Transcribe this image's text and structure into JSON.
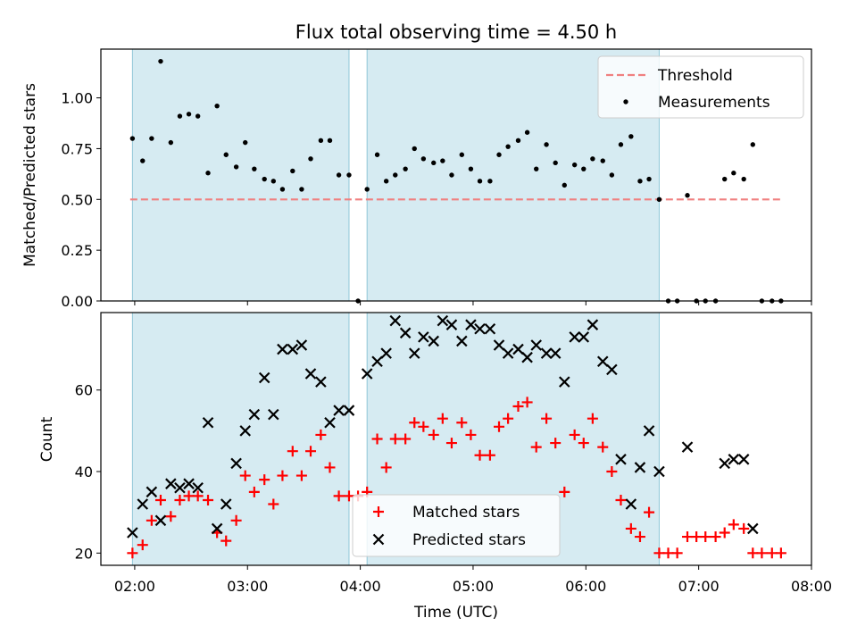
{
  "title": "Flux total observing time = 4.50 h",
  "chart_data": [
    {
      "type": "scatter",
      "ylabel": "Matched/Predicted stars",
      "ylim": [
        0,
        1.24
      ],
      "yticks": [
        "0.00",
        "0.25",
        "0.50",
        "0.75",
        "1.00"
      ],
      "ytick_values": [
        0,
        0.25,
        0.5,
        0.75,
        1.0
      ],
      "threshold": 0.5,
      "threshold_range": [
        1.96,
        7.73
      ],
      "threshold_color": "#f08080",
      "point_color": "#000000",
      "legend": {
        "position": "top-right",
        "threshold_label": "Threshold",
        "measurements_label": "Measurements"
      },
      "points": [
        [
          1.98,
          0.8
        ],
        [
          2.07,
          0.69
        ],
        [
          2.15,
          0.8
        ],
        [
          2.23,
          1.18
        ],
        [
          2.32,
          0.78
        ],
        [
          2.4,
          0.91
        ],
        [
          2.48,
          0.92
        ],
        [
          2.56,
          0.91
        ],
        [
          2.65,
          0.63
        ],
        [
          2.73,
          0.96
        ],
        [
          2.81,
          0.72
        ],
        [
          2.9,
          0.66
        ],
        [
          2.98,
          0.78
        ],
        [
          3.06,
          0.65
        ],
        [
          3.15,
          0.6
        ],
        [
          3.23,
          0.59
        ],
        [
          3.31,
          0.55
        ],
        [
          3.4,
          0.64
        ],
        [
          3.48,
          0.55
        ],
        [
          3.56,
          0.7
        ],
        [
          3.65,
          0.79
        ],
        [
          3.73,
          0.79
        ],
        [
          3.81,
          0.62
        ],
        [
          3.9,
          0.62
        ],
        [
          3.98,
          0.0
        ],
        [
          4.06,
          0.55
        ],
        [
          4.15,
          0.72
        ],
        [
          4.23,
          0.59
        ],
        [
          4.31,
          0.62
        ],
        [
          4.4,
          0.65
        ],
        [
          4.48,
          0.75
        ],
        [
          4.56,
          0.7
        ],
        [
          4.65,
          0.68
        ],
        [
          4.73,
          0.69
        ],
        [
          4.81,
          0.62
        ],
        [
          4.9,
          0.72
        ],
        [
          4.98,
          0.65
        ],
        [
          5.06,
          0.59
        ],
        [
          5.15,
          0.59
        ],
        [
          5.23,
          0.72
        ],
        [
          5.31,
          0.76
        ],
        [
          5.4,
          0.79
        ],
        [
          5.48,
          0.83
        ],
        [
          5.56,
          0.65
        ],
        [
          5.65,
          0.77
        ],
        [
          5.73,
          0.68
        ],
        [
          5.81,
          0.57
        ],
        [
          5.9,
          0.67
        ],
        [
          5.98,
          0.65
        ],
        [
          6.06,
          0.7
        ],
        [
          6.15,
          0.69
        ],
        [
          6.23,
          0.62
        ],
        [
          6.31,
          0.77
        ],
        [
          6.4,
          0.81
        ],
        [
          6.48,
          0.59
        ],
        [
          6.56,
          0.6
        ],
        [
          6.65,
          0.5
        ],
        [
          6.73,
          0.0
        ],
        [
          6.81,
          0.0
        ],
        [
          6.9,
          0.52
        ],
        [
          6.98,
          0.0
        ],
        [
          7.06,
          0.0
        ],
        [
          7.15,
          0.0
        ],
        [
          7.23,
          0.6
        ],
        [
          7.31,
          0.63
        ],
        [
          7.4,
          0.6
        ],
        [
          7.48,
          0.77
        ],
        [
          7.56,
          0.0
        ],
        [
          7.65,
          0.0
        ],
        [
          7.73,
          0.0
        ]
      ]
    },
    {
      "type": "scatter",
      "xlabel": "Time (UTC)",
      "ylabel": "Count",
      "xlim": [
        1.7,
        8.0
      ],
      "ylim": [
        17,
        79
      ],
      "yticks": [
        "20",
        "40",
        "60"
      ],
      "ytick_values": [
        20,
        40,
        60
      ],
      "xticks": [
        "02:00",
        "03:00",
        "04:00",
        "05:00",
        "06:00",
        "07:00",
        "08:00"
      ],
      "xtick_values": [
        2,
        3,
        4,
        5,
        6,
        7,
        8
      ],
      "legend": {
        "position": "bottom-center"
      },
      "series": [
        {
          "name": "Matched stars",
          "marker": "plus",
          "color": "#ff0000",
          "x": [
            1.98,
            2.07,
            2.15,
            2.23,
            2.32,
            2.4,
            2.48,
            2.56,
            2.65,
            2.73,
            2.81,
            2.9,
            2.98,
            3.06,
            3.15,
            3.23,
            3.31,
            3.4,
            3.48,
            3.56,
            3.65,
            3.73,
            3.81,
            3.9,
            3.98,
            4.06,
            4.15,
            4.23,
            4.31,
            4.4,
            4.48,
            4.56,
            4.65,
            4.73,
            4.81,
            4.9,
            4.98,
            5.06,
            5.15,
            5.23,
            5.31,
            5.4,
            5.48,
            5.56,
            5.65,
            5.73,
            5.81,
            5.9,
            5.98,
            6.06,
            6.15,
            6.23,
            6.31,
            6.4,
            6.48,
            6.56,
            6.65,
            6.73,
            6.81,
            6.9,
            6.98,
            7.06,
            7.15,
            7.23,
            7.31,
            7.4,
            7.48,
            7.56,
            7.65,
            7.73
          ],
          "values": [
            20,
            22,
            28,
            33,
            29,
            33,
            34,
            34,
            33,
            25,
            23,
            28,
            39,
            35,
            38,
            32,
            39,
            45,
            39,
            45,
            49,
            41,
            34,
            34,
            34,
            35,
            48,
            41,
            48,
            48,
            52,
            51,
            49,
            53,
            47,
            52,
            49,
            44,
            44,
            51,
            53,
            56,
            57,
            46,
            53,
            47,
            35,
            49,
            47,
            53,
            46,
            40,
            33,
            26,
            24,
            30,
            20,
            20,
            20,
            24,
            24,
            24,
            24,
            25,
            27,
            26,
            20,
            20,
            20,
            20
          ]
        },
        {
          "name": "Predicted stars",
          "marker": "x",
          "color": "#000000",
          "x": [
            1.98,
            2.07,
            2.15,
            2.23,
            2.32,
            2.4,
            2.48,
            2.56,
            2.65,
            2.73,
            2.81,
            2.9,
            2.98,
            3.06,
            3.15,
            3.23,
            3.31,
            3.4,
            3.48,
            3.56,
            3.65,
            3.73,
            3.81,
            3.9,
            4.06,
            4.15,
            4.23,
            4.31,
            4.4,
            4.48,
            4.56,
            4.65,
            4.73,
            4.81,
            4.9,
            4.98,
            5.06,
            5.15,
            5.23,
            5.31,
            5.4,
            5.48,
            5.56,
            5.65,
            5.73,
            5.81,
            5.9,
            5.98,
            6.06,
            6.15,
            6.23,
            6.31,
            6.4,
            6.48,
            6.56,
            6.65,
            6.9,
            7.23,
            7.31,
            7.4,
            7.48
          ],
          "values": [
            25,
            32,
            35,
            28,
            37,
            36,
            37,
            36,
            52,
            26,
            32,
            42,
            50,
            54,
            63,
            54,
            70,
            70,
            71,
            64,
            62,
            52,
            55,
            55,
            64,
            67,
            69,
            77,
            74,
            69,
            73,
            72,
            77,
            76,
            72,
            76,
            75,
            75,
            71,
            69,
            70,
            68,
            71,
            69,
            69,
            62,
            73,
            73,
            76,
            67,
            65,
            43,
            32,
            41,
            50,
            40,
            46,
            42,
            43,
            43,
            26
          ]
        }
      ]
    }
  ],
  "observing_windows": [
    [
      1.98,
      3.9
    ],
    [
      4.06,
      6.65
    ]
  ],
  "window_color": "#add8e6"
}
